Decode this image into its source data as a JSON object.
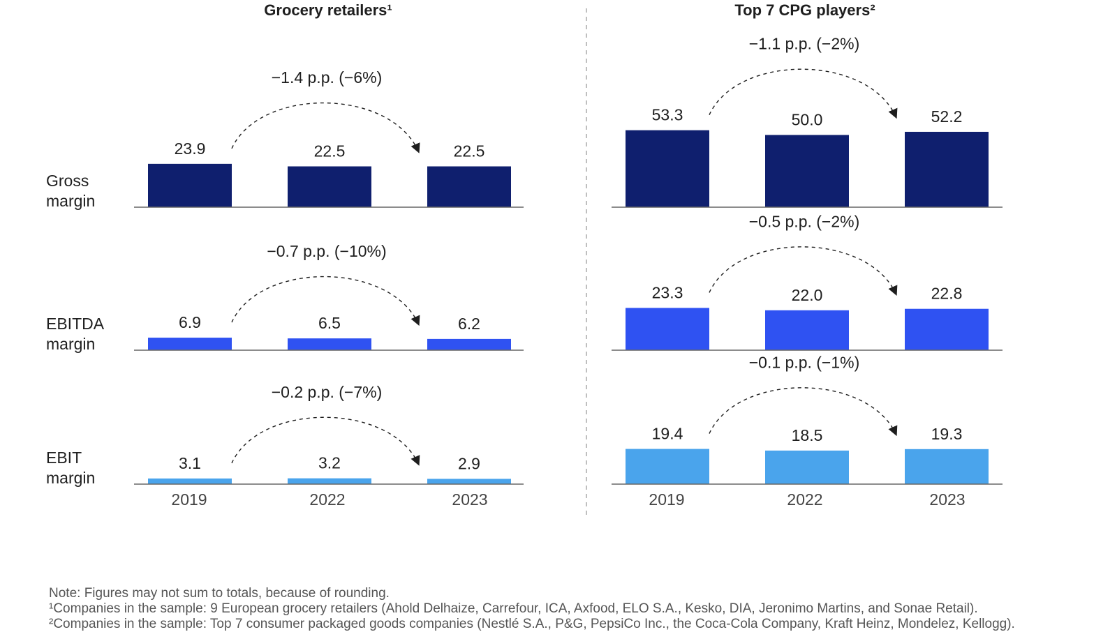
{
  "colors": {
    "gross": "#0f1f6e",
    "ebitda": "#2f52f2",
    "ebit": "#4aa4ec",
    "axis": "#666666",
    "text": "#1e1e1e"
  },
  "chart_data": [
    {
      "type": "bar",
      "title": "Grocery retailers¹",
      "categories": [
        "2019",
        "2022",
        "2023"
      ],
      "rows": [
        {
          "label": [
            "Gross",
            "margin"
          ],
          "values": [
            23.9,
            22.5,
            22.5
          ],
          "value_labels": [
            "23.9",
            "22.5",
            "22.5"
          ],
          "change": "−1.4 p.p. (−6%)"
        },
        {
          "label": [
            "EBITDA",
            "margin"
          ],
          "values": [
            6.9,
            6.5,
            6.2
          ],
          "value_labels": [
            "6.9",
            "6.5",
            "6.2"
          ],
          "change": "−0.7 p.p. (−10%)"
        },
        {
          "label": [
            "EBIT",
            "margin"
          ],
          "values": [
            3.1,
            3.2,
            2.9
          ],
          "value_labels": [
            "3.1",
            "3.2",
            "2.9"
          ],
          "change": "−0.2 p.p. (−7%)"
        }
      ]
    },
    {
      "type": "bar",
      "title": "Top 7 CPG players²",
      "categories": [
        "2019",
        "2022",
        "2023"
      ],
      "rows": [
        {
          "values": [
            53.3,
            50.0,
            52.2
          ],
          "value_labels": [
            "53.3",
            "50.0",
            "52.2"
          ],
          "change": "−1.1 p.p. (−2%)"
        },
        {
          "values": [
            23.3,
            22.0,
            22.8
          ],
          "value_labels": [
            "23.3",
            "22.0",
            "22.8"
          ],
          "change": "−0.5 p.p. (−2%)"
        },
        {
          "values": [
            19.4,
            18.5,
            19.3
          ],
          "value_labels": [
            "19.4",
            "18.5",
            "19.3"
          ],
          "change": "−0.1 p.p. (−1%)"
        }
      ]
    }
  ],
  "notes": {
    "note": "Note: Figures may not sum to totals, because of rounding.",
    "footnote1": "¹Companies in the sample: 9 European grocery retailers (Ahold Delhaize, Carrefour, ICA, Axfood, ELO S.A., Kesko, DIA, Jeronimo Martins, and Sonae Retail).",
    "footnote2": "²Companies in the sample: Top 7 consumer packaged goods companies (Nestlé S.A., P&G, PepsiCo Inc., the Coca-Cola Company, Kraft Heinz, Mondelez, Kellogg)."
  }
}
